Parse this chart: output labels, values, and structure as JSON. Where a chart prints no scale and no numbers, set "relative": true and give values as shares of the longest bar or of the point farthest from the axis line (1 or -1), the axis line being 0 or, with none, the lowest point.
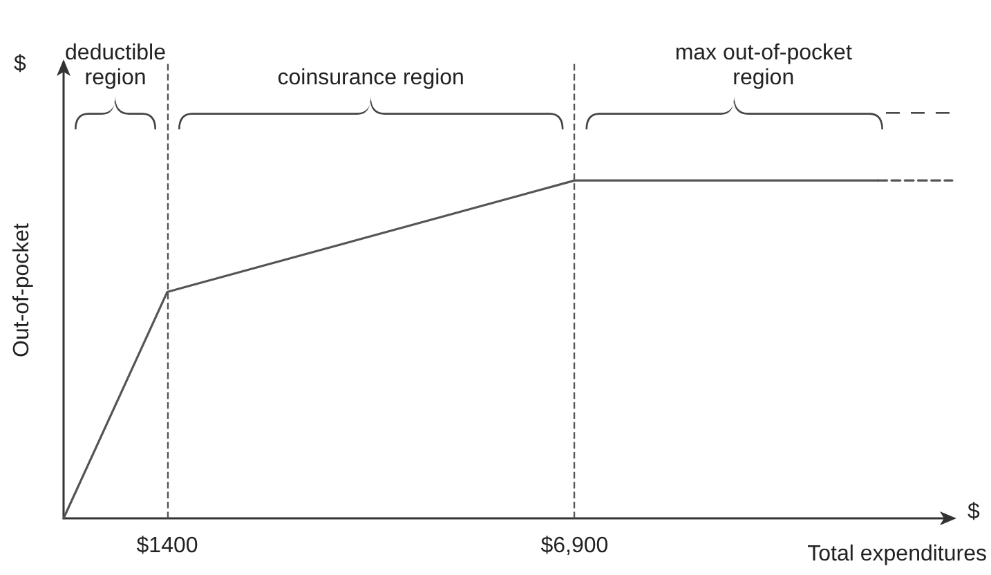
{
  "chart_data": {
    "type": "line",
    "xlabel": "Total expenditures",
    "ylabel": "Out-of-pocket",
    "relative": true,
    "series": [
      {
        "x": [
          0,
          1400,
          6900,
          11000
        ],
        "values": [
          0,
          0.67,
          1,
          1
        ],
        "color": "#555555",
        "line_style": "solid"
      },
      {
        "x": [
          11000,
          12000
        ],
        "values": [
          1,
          1
        ],
        "color": "#555555",
        "line_style": "dashed"
      }
    ],
    "xlim": [
      0,
      12000
    ],
    "xticks": [
      {
        "value": 1400,
        "label": "$1400"
      },
      {
        "value": 6900,
        "label": "$6,900"
      }
    ],
    "ref_lines": [
      {
        "axis": "x",
        "value": 1400,
        "line_style": "dashed",
        "color": "#555555"
      },
      {
        "axis": "x",
        "value": 6900,
        "line_style": "dashed",
        "color": "#555555"
      }
    ],
    "annotations": [
      "deductible region",
      "coinsurance region",
      "max out-of-pocket region",
      "$",
      "$"
    ],
    "grid": false,
    "marker": "none"
  }
}
